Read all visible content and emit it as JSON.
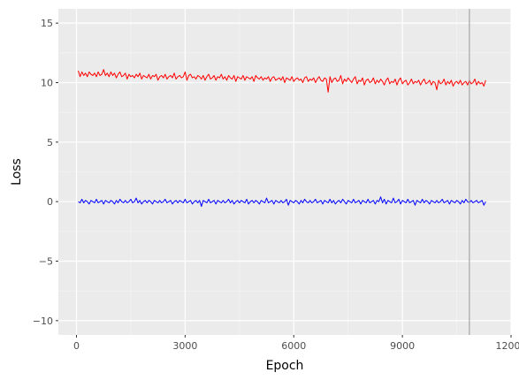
{
  "chart_data": {
    "type": "line",
    "xlabel": "Epoch",
    "ylabel": "Loss",
    "xlim": [
      -500,
      12000
    ],
    "ylim": [
      -11.2,
      16.2
    ],
    "x_ticks": [
      0,
      3000,
      6000,
      9000,
      12000
    ],
    "x_tick_labels": [
      "0",
      "3000",
      "6000",
      "9000",
      "12000"
    ],
    "x_minor_ticks": [
      1500,
      4500,
      7500,
      10500
    ],
    "y_ticks": [
      -10,
      -5,
      0,
      5,
      10,
      15
    ],
    "y_tick_labels": [
      "−10",
      "−5",
      "0",
      "5",
      "10",
      "15"
    ],
    "y_minor_ticks": [
      -7.5,
      -2.5,
      2.5,
      7.5,
      12.5
    ],
    "grid": true,
    "legend": "none",
    "vline": {
      "x": 10850,
      "color": "#a6a6a6"
    },
    "series": [
      {
        "color": "#ff0000",
        "x_start": 50,
        "x_step": 50,
        "values": [
          11.0,
          10.5,
          10.9,
          10.6,
          10.8,
          10.5,
          10.9,
          10.7,
          10.6,
          10.8,
          10.5,
          10.9,
          10.6,
          10.7,
          11.1,
          10.6,
          10.8,
          10.5,
          10.9,
          10.6,
          10.8,
          10.4,
          10.7,
          10.9,
          10.5,
          10.6,
          10.8,
          10.3,
          10.7,
          10.5,
          10.6,
          10.4,
          10.7,
          10.5,
          10.8,
          10.3,
          10.6,
          10.5,
          10.4,
          10.7,
          10.3,
          10.6,
          10.5,
          10.7,
          10.2,
          10.5,
          10.6,
          10.4,
          10.7,
          10.3,
          10.5,
          10.6,
          10.4,
          10.8,
          10.3,
          10.5,
          10.6,
          10.4,
          10.5,
          10.9,
          10.2,
          10.6,
          10.7,
          10.4,
          10.5,
          10.3,
          10.6,
          10.5,
          10.3,
          10.6,
          10.2,
          10.5,
          10.7,
          10.3,
          10.4,
          10.6,
          10.2,
          10.5,
          10.4,
          10.7,
          10.3,
          10.5,
          10.2,
          10.6,
          10.4,
          10.3,
          10.6,
          10.1,
          10.5,
          10.4,
          10.3,
          10.6,
          10.2,
          10.5,
          10.4,
          10.3,
          10.5,
          10.1,
          10.6,
          10.4,
          10.3,
          10.5,
          10.2,
          10.4,
          10.3,
          10.5,
          10.1,
          10.4,
          10.5,
          10.2,
          10.3,
          10.4,
          10.2,
          10.5,
          10.0,
          10.4,
          10.3,
          10.2,
          10.5,
          10.1,
          10.3,
          10.4,
          10.2,
          10.3,
          10.0,
          10.4,
          10.5,
          10.1,
          10.3,
          10.2,
          10.4,
          10.0,
          10.3,
          10.5,
          10.2,
          10.1,
          10.4,
          10.3,
          9.2,
          10.5,
          10.0,
          10.3,
          10.4,
          10.1,
          10.2,
          10.6,
          9.9,
          10.3,
          10.1,
          10.4,
          10.2,
          10.0,
          10.3,
          10.5,
          9.9,
          10.2,
          10.1,
          10.4,
          9.8,
          10.2,
          10.3,
          10.0,
          10.1,
          10.4,
          9.9,
          10.2,
          10.0,
          10.3,
          10.1,
          9.8,
          10.2,
          10.4,
          9.9,
          10.1,
          10.0,
          10.3,
          9.8,
          10.2,
          10.4,
          9.9,
          10.1,
          10.2,
          9.8,
          10.0,
          10.3,
          9.9,
          10.1,
          10.0,
          10.2,
          9.8,
          10.1,
          10.3,
          9.9,
          10.0,
          10.2,
          9.8,
          10.1,
          10.0,
          9.4,
          10.2,
          9.9,
          10.0,
          10.3,
          9.8,
          10.1,
          9.9,
          10.2,
          9.7,
          10.0,
          10.1,
          9.9,
          10.2,
          9.8,
          10.0,
          10.1,
          9.8,
          10.2,
          9.9,
          10.0,
          10.3,
          9.8,
          10.1,
          9.9,
          10.0,
          9.7,
          10.2
        ]
      },
      {
        "color": "#0000ff",
        "x_start": 50,
        "x_step": 50,
        "values": [
          0.0,
          -0.1,
          0.2,
          -0.1,
          0.1,
          0.0,
          -0.2,
          0.1,
          0.0,
          -0.1,
          0.2,
          -0.1,
          0.0,
          0.1,
          -0.2,
          0.1,
          0.0,
          -0.1,
          0.1,
          0.0,
          -0.2,
          0.1,
          -0.1,
          0.2,
          0.0,
          -0.1,
          0.1,
          -0.1,
          0.0,
          0.2,
          -0.1,
          0.0,
          0.3,
          -0.1,
          0.1,
          -0.2,
          0.0,
          0.1,
          -0.1,
          0.1,
          0.0,
          -0.2,
          0.1,
          0.0,
          -0.1,
          0.1,
          -0.1,
          0.0,
          0.2,
          -0.1,
          0.0,
          0.1,
          -0.2,
          0.0,
          0.1,
          -0.1,
          0.1,
          0.0,
          -0.1,
          0.2,
          -0.1,
          0.0,
          0.1,
          -0.2,
          0.0,
          0.1,
          -0.1,
          0.1,
          -0.4,
          0.1,
          0.0,
          -0.1,
          0.2,
          -0.1,
          0.0,
          0.1,
          -0.2,
          0.1,
          0.0,
          -0.1,
          0.1,
          -0.1,
          0.0,
          0.2,
          -0.1,
          0.1,
          -0.2,
          0.0,
          0.1,
          -0.1,
          0.1,
          0.0,
          -0.1,
          0.2,
          -0.2,
          0.0,
          0.1,
          -0.1,
          0.1,
          0.0,
          -0.2,
          0.1,
          0.0,
          -0.1,
          0.3,
          -0.1,
          0.0,
          0.1,
          -0.2,
          0.1,
          0.0,
          -0.1,
          0.1,
          -0.1,
          0.0,
          0.2,
          -0.3,
          0.1,
          0.0,
          -0.1,
          0.1,
          0.0,
          -0.2,
          0.1,
          -0.1,
          0.2,
          0.0,
          -0.1,
          0.1,
          -0.1,
          0.0,
          0.2,
          -0.1,
          0.0,
          0.1,
          -0.2,
          0.1,
          0.0,
          -0.1,
          0.2,
          -0.1,
          0.1,
          -0.2,
          0.0,
          0.1,
          -0.1,
          0.2,
          0.0,
          -0.2,
          0.1,
          0.0,
          -0.1,
          0.2,
          -0.1,
          0.0,
          0.1,
          -0.2,
          0.1,
          0.0,
          -0.1,
          0.2,
          -0.1,
          0.0,
          0.1,
          -0.2,
          0.1,
          0.0,
          0.4,
          -0.1,
          0.2,
          -0.2,
          0.1,
          0.0,
          -0.1,
          0.3,
          -0.1,
          0.0,
          0.2,
          -0.2,
          0.1,
          0.0,
          -0.1,
          0.2,
          -0.1,
          0.0,
          0.1,
          -0.3,
          0.1,
          0.0,
          -0.1,
          0.2,
          -0.1,
          0.1,
          0.0,
          -0.2,
          0.1,
          0.0,
          -0.1,
          0.1,
          -0.1,
          0.0,
          0.2,
          -0.1,
          0.0,
          0.1,
          -0.2,
          0.1,
          0.0,
          -0.1,
          0.1,
          0.0,
          -0.2,
          0.1,
          -0.1,
          0.2,
          0.0,
          -0.1,
          0.1,
          -0.1,
          0.0,
          0.1,
          -0.1,
          0.0,
          0.1,
          -0.3,
          0.0
        ]
      }
    ]
  }
}
